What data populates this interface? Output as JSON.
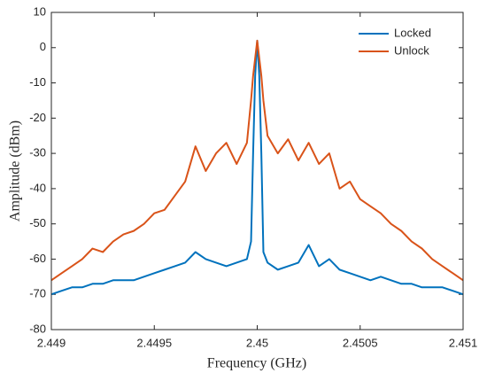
{
  "chart_data": {
    "type": "line",
    "xlabel": "Frequency (GHz)",
    "ylabel": "Amplitude (dBm)",
    "x": [
      2.449,
      2.44905,
      2.4491,
      2.44915,
      2.4492,
      2.44925,
      2.4493,
      2.44935,
      2.4494,
      2.44945,
      2.4495,
      2.44955,
      2.4496,
      2.44965,
      2.4497,
      2.44975,
      2.4498,
      2.44985,
      2.4499,
      2.44995,
      2.44997,
      2.44998,
      2.44999,
      2.45,
      2.45001,
      2.45002,
      2.45003,
      2.45005,
      2.4501,
      2.45015,
      2.4502,
      2.45025,
      2.4503,
      2.45035,
      2.4504,
      2.45045,
      2.4505,
      2.45055,
      2.4506,
      2.45065,
      2.4507,
      2.45075,
      2.4508,
      2.45085,
      2.4509,
      2.45095,
      2.451
    ],
    "series": [
      {
        "name": "Locked",
        "color": "#0072bd",
        "values": [
          -70,
          -69,
          -68,
          -68,
          -67,
          -67,
          -66,
          -66,
          -66,
          -65,
          -64,
          -63,
          -62,
          -61,
          -58,
          -60,
          -61,
          -62,
          -61,
          -60,
          -55,
          -30,
          -8,
          2,
          -8,
          -30,
          -58,
          -61,
          -63,
          -62,
          -61,
          -56,
          -62,
          -60,
          -63,
          -64,
          -65,
          -66,
          -65,
          -66,
          -67,
          -67,
          -68,
          -68,
          -68,
          -69,
          -70
        ]
      },
      {
        "name": "Unlock",
        "color": "#d95319",
        "values": [
          -66,
          -64,
          -62,
          -60,
          -57,
          -58,
          -55,
          -53,
          -52,
          -50,
          -47,
          -46,
          -42,
          -38,
          -28,
          -35,
          -30,
          -27,
          -33,
          -27,
          -15,
          -8,
          -3,
          2,
          -3,
          -8,
          -15,
          -25,
          -30,
          -26,
          -32,
          -27,
          -33,
          -30,
          -40,
          -38,
          -43,
          -45,
          -47,
          -50,
          -52,
          -55,
          -57,
          -60,
          -62,
          -64,
          -66
        ]
      }
    ],
    "xlim": [
      2.449,
      2.451
    ],
    "xticks": [
      2.449,
      2.4495,
      2.45,
      2.4505,
      2.451
    ],
    "ylim": [
      -80,
      10
    ],
    "yticks": [
      -80,
      -70,
      -60,
      -50,
      -40,
      -30,
      -20,
      -10,
      0,
      10
    ],
    "grid": false,
    "legend": "upper right"
  }
}
